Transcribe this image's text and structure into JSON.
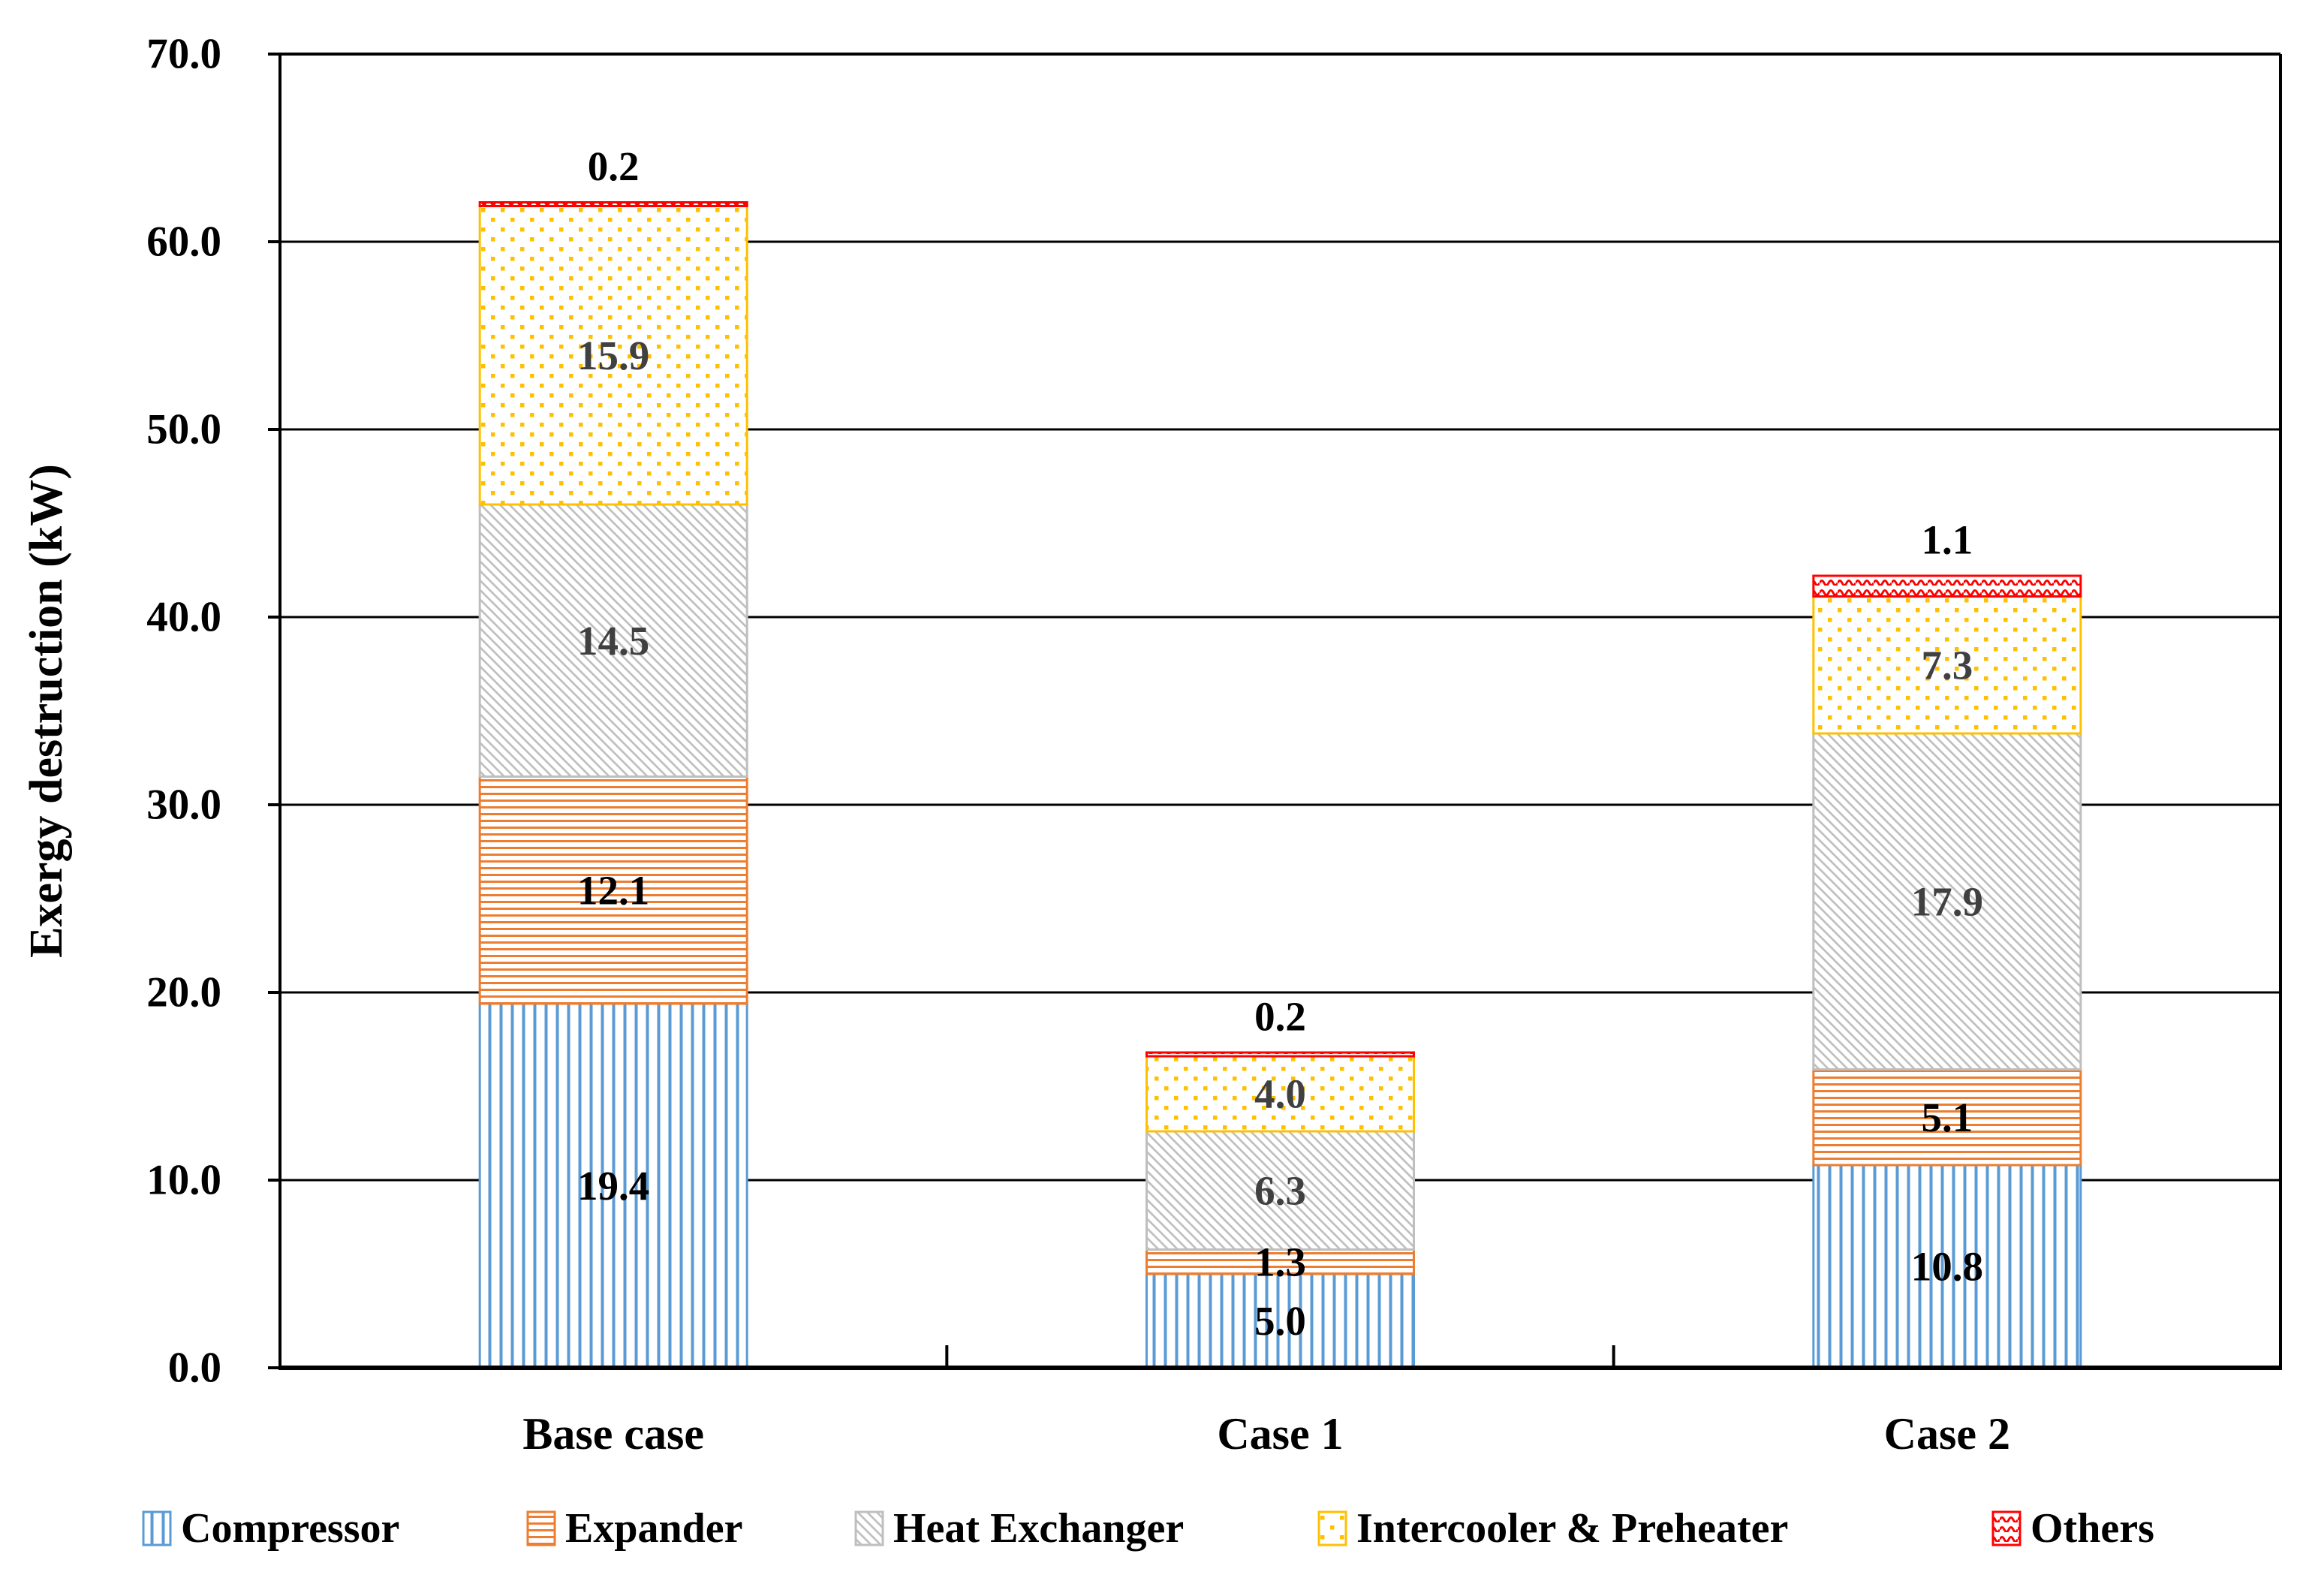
{
  "chart_data": {
    "type": "bar",
    "stacked": true,
    "title": "",
    "xlabel": "",
    "ylabel": "Exergy destruction (kW)",
    "ylim": [
      0,
      70
    ],
    "ytick_step": 10,
    "ytick_labels": [
      "0.0",
      "10.0",
      "20.0",
      "30.0",
      "40.0",
      "50.0",
      "60.0",
      "70.0"
    ],
    "grid": true,
    "legend_position": "bottom",
    "categories": [
      "Base case",
      "Case 1",
      "Case 2"
    ],
    "series": [
      {
        "name": "Compressor",
        "values": [
          19.4,
          5.0,
          10.8
        ],
        "labels": [
          "19.4",
          "5.0",
          "10.8"
        ],
        "color": "#5B9BD5",
        "pattern": "vertical-lines",
        "label_color": "#000000",
        "label_position": "inside"
      },
      {
        "name": "Expander",
        "values": [
          12.1,
          1.3,
          5.1
        ],
        "labels": [
          "12.1",
          "1.3",
          "5.1"
        ],
        "color": "#ED7D31",
        "pattern": "horizontal-lines",
        "label_color": "#000000",
        "label_position": "inside"
      },
      {
        "name": "Heat Exchanger",
        "values": [
          14.5,
          6.3,
          17.9
        ],
        "labels": [
          "14.5",
          "6.3",
          "17.9"
        ],
        "color": "#BFBFBF",
        "pattern": "diagonal-lines",
        "label_color": "#404040",
        "label_position": "inside"
      },
      {
        "name": "Intercooler & Preheater",
        "values": [
          15.9,
          4.0,
          7.3
        ],
        "labels": [
          "15.9",
          "4.0",
          "7.3"
        ],
        "color": "#FFC000",
        "pattern": "dots",
        "label_color": "#404040",
        "label_position": "inside"
      },
      {
        "name": "Others",
        "values": [
          0.2,
          0.2,
          1.1
        ],
        "labels": [
          "0.2",
          "0.2",
          "1.1"
        ],
        "color": "#FF0000",
        "pattern": "waves",
        "label_color": "#000000",
        "label_position": "above"
      }
    ],
    "axis_color": "#000000",
    "gridline_color": "#000000"
  }
}
